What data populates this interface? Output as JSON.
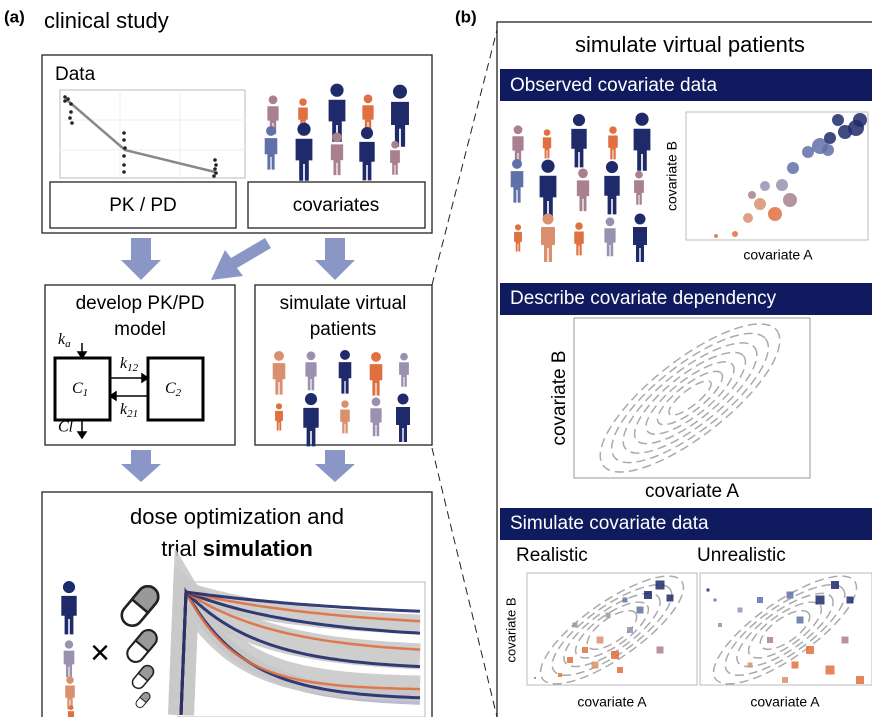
{
  "panel_a": {
    "label": "(a)",
    "title": "clinical study",
    "data_box": {
      "title": "Data",
      "pkpd_label": "PK / PD",
      "covariates_label": "covariates"
    },
    "model_box": {
      "title_line1": "develop PK/PD",
      "title_line2": "model",
      "ka": {
        "symbol": "k",
        "subscript": "a"
      },
      "k12": {
        "symbol": "k",
        "subscript": "12"
      },
      "k21": {
        "symbol": "k",
        "subscript": "21"
      },
      "cl": "Cl",
      "c1": {
        "symbol": "C",
        "subscript": "1"
      },
      "c2": {
        "symbol": "C",
        "subscript": "2"
      }
    },
    "simulate_box": {
      "title_line1": "simulate virtual",
      "title_line2": "patients"
    },
    "dose_box": {
      "title_line1": "dose optimization and",
      "title_line2_prefix": "trial ",
      "title_line2_bold": "simulation",
      "times": "×"
    }
  },
  "panel_b": {
    "label": "(b)",
    "title": "simulate virtual patients",
    "observed": {
      "heading": "Observed covariate data",
      "x_label": "covariate A",
      "y_label": "covariate B"
    },
    "dependency": {
      "heading": "Describe covariate dependency",
      "x_label": "covariate A",
      "y_label": "covariate B"
    },
    "simulated": {
      "heading": "Simulate covariate data",
      "realistic": "Realistic",
      "unrealistic": "Unrealistic",
      "x_label_1": "covariate A",
      "x_label_2": "covariate A",
      "y_label": "covariate B"
    }
  }
}
